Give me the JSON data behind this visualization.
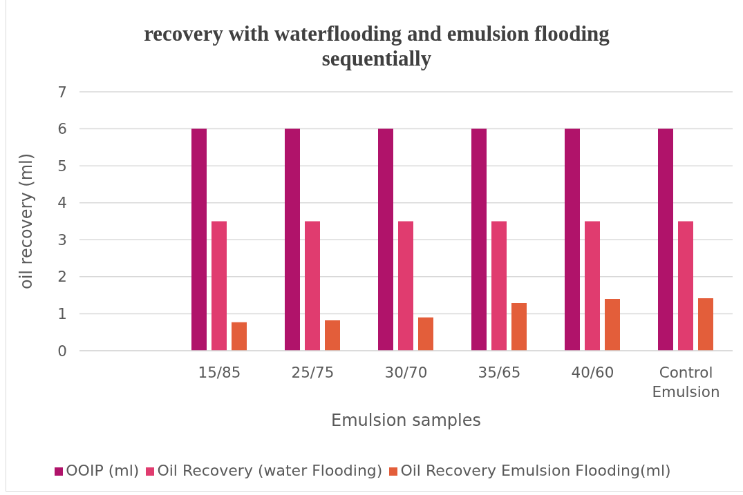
{
  "chart_data": {
    "type": "bar",
    "title": "recovery with waterflooding and emulsion flooding sequentially",
    "xlabel": "Emulsion samples",
    "ylabel": "oil recovery (ml)",
    "categories": [
      null,
      "15/85",
      "25/75",
      "30/70",
      "35/65",
      "40/60",
      "Control Emulsion"
    ],
    "series": [
      {
        "name": "OOIP (ml)",
        "color": "#b0136a",
        "values": [
          null,
          6,
          6,
          6,
          6,
          6,
          6
        ]
      },
      {
        "name": "Oil Recovery (water Flooding)",
        "color": "#e03c6f",
        "values": [
          null,
          3.5,
          3.5,
          3.5,
          3.5,
          3.5,
          3.5
        ]
      },
      {
        "name": "Oil Recovery Emulsion Flooding(ml)",
        "color": "#e35e3a",
        "values": [
          null,
          0.77,
          0.82,
          0.9,
          1.29,
          1.4,
          1.42
        ]
      }
    ],
    "ylim": [
      0,
      7
    ],
    "yticks": [
      0,
      1,
      2,
      3,
      4,
      5,
      6,
      7
    ],
    "grid": "y",
    "legend": "bottom"
  }
}
